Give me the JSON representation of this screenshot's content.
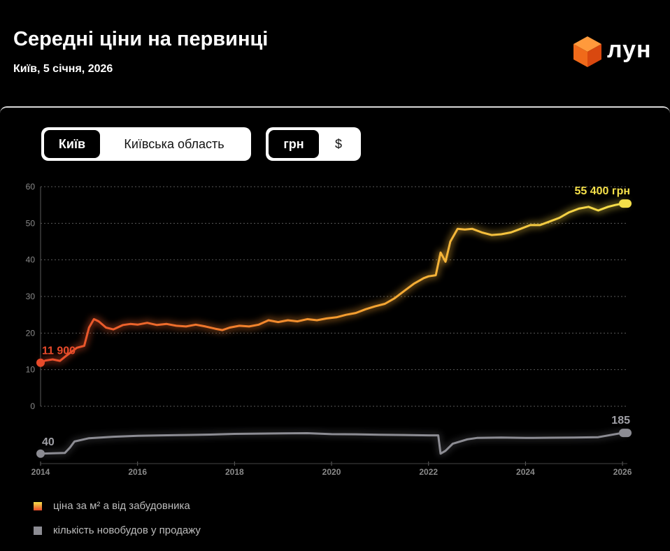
{
  "header": {
    "title": "Середні ціни на первинці",
    "subtitle": "Київ, 5 січня, 2026",
    "logo_text": "лун"
  },
  "region_toggle": {
    "options": [
      "Київ",
      "Київська область"
    ],
    "selected": "Київ"
  },
  "currency_toggle": {
    "options": [
      "грн",
      "$"
    ],
    "selected": "грн"
  },
  "legend": {
    "price": "ціна за м² а від забудовника",
    "count": "кількість новобудов у продажу"
  },
  "colors": {
    "price_start": "#e84a2a",
    "price_end": "#f5e04a",
    "count": "#8c8c93",
    "grid": "#5a5a5a"
  },
  "chart_data": [
    {
      "type": "line",
      "y_ticks": [
        0,
        10,
        20,
        30,
        40,
        50,
        60
      ],
      "ylim": [
        0,
        60
      ],
      "xlim": [
        2014,
        2026.1
      ],
      "grid": true,
      "start_label": "11 900",
      "end_label": "55 400 грн",
      "series": [
        {
          "x": [
            2014.0,
            2014.1,
            2014.25,
            2014.4,
            2014.5,
            2014.6,
            2014.75,
            2014.9,
            2015.0,
            2015.1,
            2015.2,
            2015.35,
            2015.5,
            2015.7,
            2015.85,
            2016.0,
            2016.2,
            2016.4,
            2016.6,
            2016.8,
            2017.0,
            2017.2,
            2017.4,
            2017.6,
            2017.75,
            2017.9,
            2018.1,
            2018.3,
            2018.5,
            2018.7,
            2018.9,
            2019.1,
            2019.3,
            2019.5,
            2019.7,
            2019.9,
            2020.1,
            2020.3,
            2020.5,
            2020.7,
            2020.9,
            2021.1,
            2021.3,
            2021.5,
            2021.7,
            2021.9,
            2022.0,
            2022.15,
            2022.25,
            2022.35,
            2022.45,
            2022.6,
            2022.75,
            2022.9,
            2023.1,
            2023.3,
            2023.5,
            2023.7,
            2023.9,
            2024.1,
            2024.3,
            2024.5,
            2024.7,
            2024.9,
            2025.1,
            2025.3,
            2025.5,
            2025.7,
            2025.85,
            2026.0,
            2026.1
          ],
          "values": [
            11.9,
            12.5,
            12.8,
            12.4,
            13.5,
            14.5,
            16.0,
            16.5,
            21.5,
            23.8,
            23.2,
            21.5,
            21.0,
            22.2,
            22.5,
            22.3,
            22.8,
            22.2,
            22.5,
            22.0,
            21.8,
            22.3,
            21.8,
            21.2,
            20.8,
            21.5,
            22.0,
            21.8,
            22.3,
            23.5,
            23.0,
            23.5,
            23.2,
            23.8,
            23.5,
            24.0,
            24.3,
            25.0,
            25.5,
            26.5,
            27.3,
            28.0,
            29.5,
            31.5,
            33.5,
            35.0,
            35.5,
            35.8,
            42.0,
            39.5,
            45.0,
            48.5,
            48.3,
            48.5,
            47.5,
            46.8,
            47.0,
            47.5,
            48.5,
            49.5,
            49.5,
            50.5,
            51.5,
            53.0,
            54.0,
            54.5,
            53.5,
            54.5,
            55.0,
            55.4,
            55.4
          ]
        }
      ]
    },
    {
      "type": "line",
      "start_label": "40",
      "end_label": "185",
      "x_ticks": [
        2014,
        2016,
        2018,
        2020,
        2022,
        2024,
        2026
      ],
      "ylim": [
        0,
        200
      ],
      "series": [
        {
          "x": [
            2014.0,
            2014.5,
            2014.6,
            2014.7,
            2015.0,
            2015.5,
            2016.0,
            2016.5,
            2017.0,
            2017.5,
            2018.0,
            2018.5,
            2019.0,
            2019.5,
            2020.0,
            2020.5,
            2021.0,
            2021.5,
            2022.0,
            2022.2,
            2022.25,
            2022.35,
            2022.5,
            2022.8,
            2023.0,
            2023.5,
            2024.0,
            2024.5,
            2025.0,
            2025.5,
            2026.0,
            2026.1
          ],
          "values": [
            40,
            45,
            80,
            125,
            148,
            158,
            165,
            168,
            170,
            173,
            178,
            180,
            182,
            183,
            176,
            175,
            172,
            170,
            168,
            168,
            40,
            60,
            110,
            140,
            150,
            152,
            150,
            151,
            152,
            155,
            185,
            185
          ]
        }
      ]
    }
  ]
}
